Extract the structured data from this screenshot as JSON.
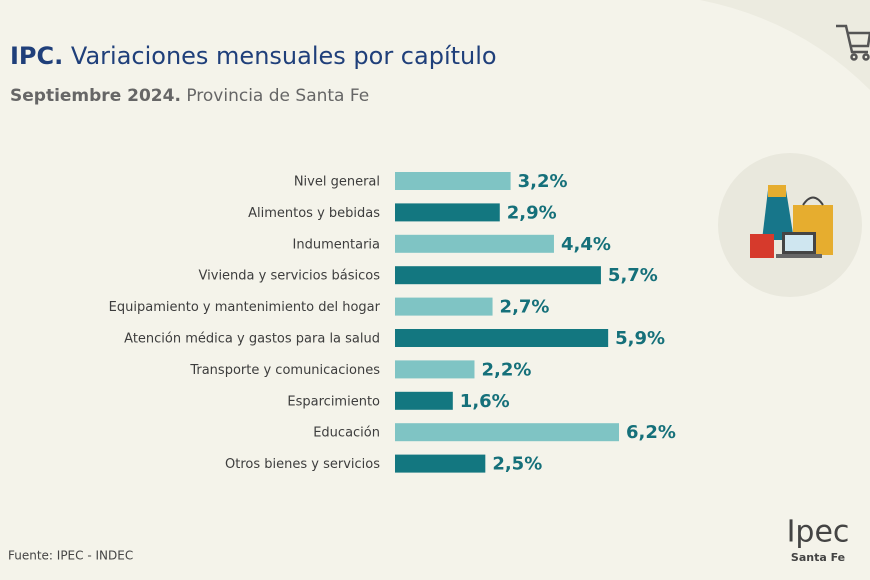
{
  "chart_data": {
    "type": "bar",
    "orientation": "horizontal",
    "title_lead": "IPC.",
    "title": "Variaciones mensuales por capítulo",
    "subtitle_lead": "Septiembre 2024.",
    "subtitle": "Provincia de Santa Fe",
    "categories": [
      "Nivel general",
      "Alimentos y bebidas",
      "Indumentaria",
      "Vivienda y servicios básicos",
      "Equipamiento y mantenimiento del hogar",
      "Atención médica y gastos para la salud",
      "Transporte y comunicaciones",
      "Esparcimiento",
      "Educación",
      "Otros bienes y servicios"
    ],
    "values": [
      3.2,
      2.9,
      4.4,
      5.7,
      2.7,
      5.9,
      2.2,
      1.6,
      6.2,
      2.5
    ],
    "value_labels": [
      "3,2%",
      "2,9%",
      "4,4%",
      "5,7%",
      "2,7%",
      "5,9%",
      "2,2%",
      "1,6%",
      "6,2%",
      "2,5%"
    ],
    "colors": [
      "#7fc4c4",
      "#137780",
      "#7fc4c4",
      "#137780",
      "#7fc4c4",
      "#137780",
      "#7fc4c4",
      "#137780",
      "#7fc4c4",
      "#137780"
    ],
    "source": "Fuente: IPEC - INDEC",
    "logo": "Ipec",
    "logo_sub": "Santa Fe"
  }
}
